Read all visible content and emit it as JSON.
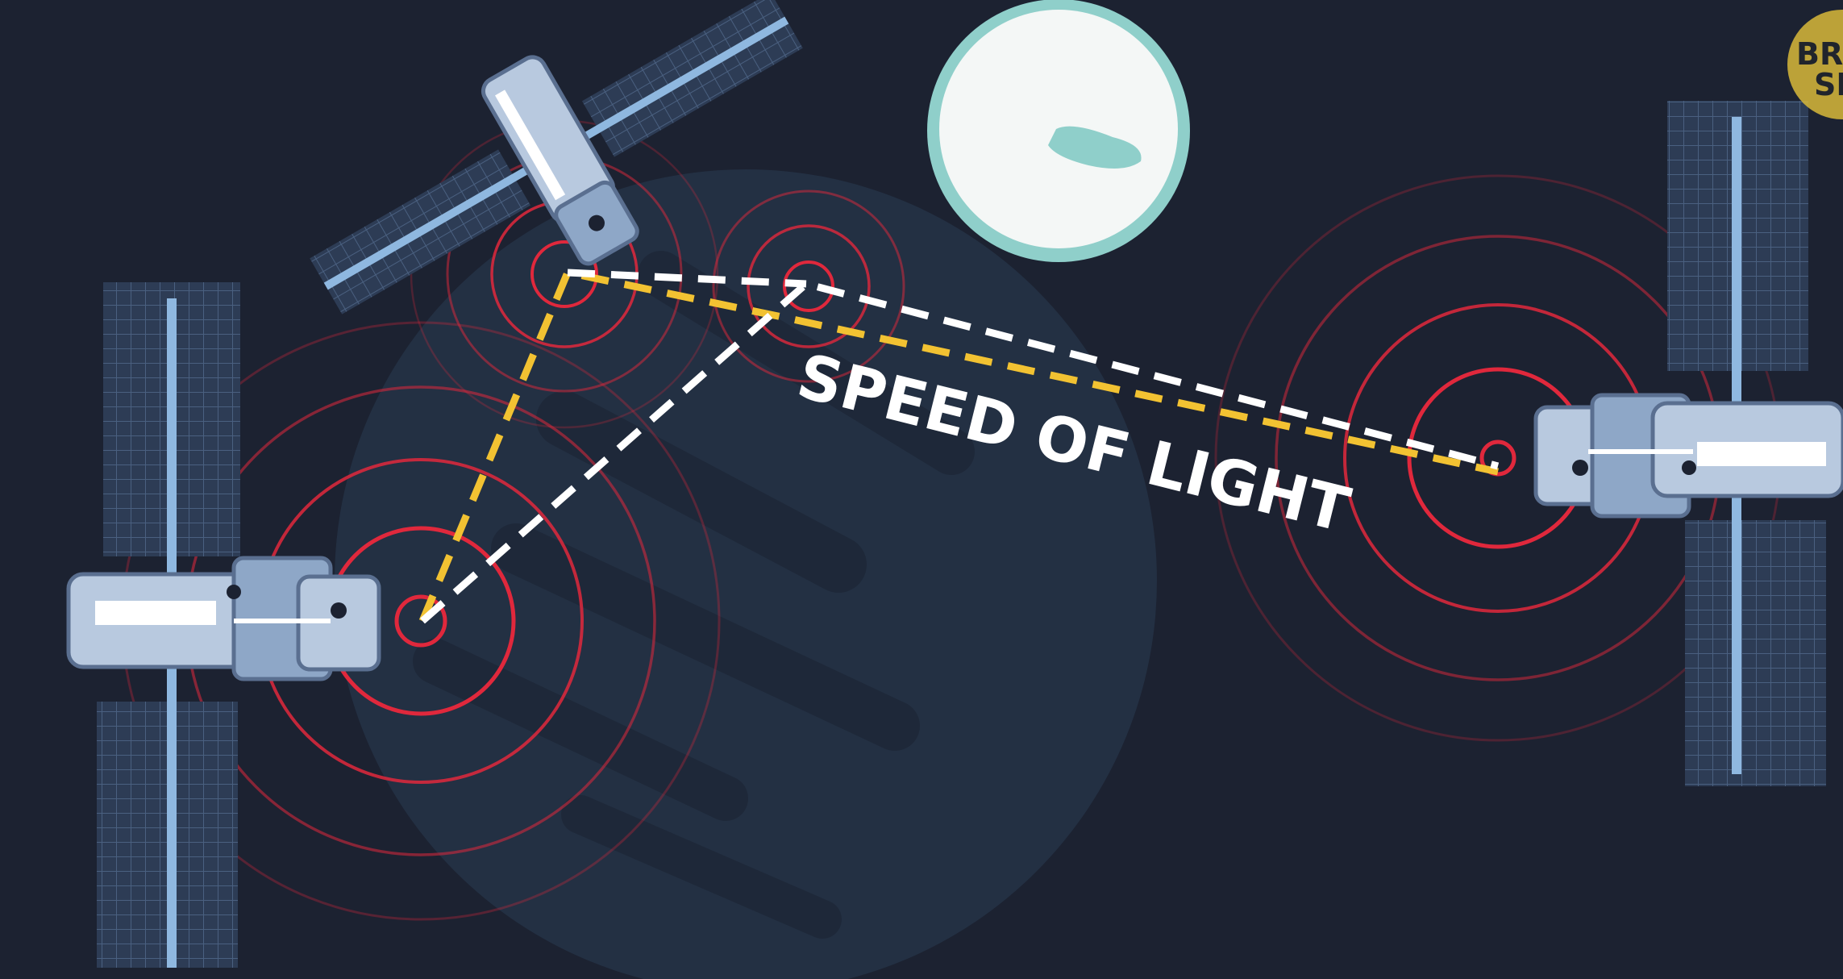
{
  "caption": "SPEED OF LIGHT",
  "logo": {
    "line1": "BRIG",
    "line2": "SI"
  },
  "colors": {
    "background": "#1c2231",
    "planet": "#253246",
    "moon": "#f4f7f6",
    "moon_rim": "#8fcfca",
    "signal_rings": "#e0283c",
    "path_yellow": "#f2c232",
    "path_white": "#ffffff",
    "solar_panel": "#3a4d68",
    "satellite_body": "#b8c9df",
    "logo_badge": "#d8b93a"
  },
  "scene": {
    "satellites": [
      "satellite-top",
      "satellite-left",
      "satellite-right"
    ],
    "icons": [
      "satellite-icon",
      "moon-icon",
      "planet-icon",
      "signal-rings-icon"
    ]
  }
}
